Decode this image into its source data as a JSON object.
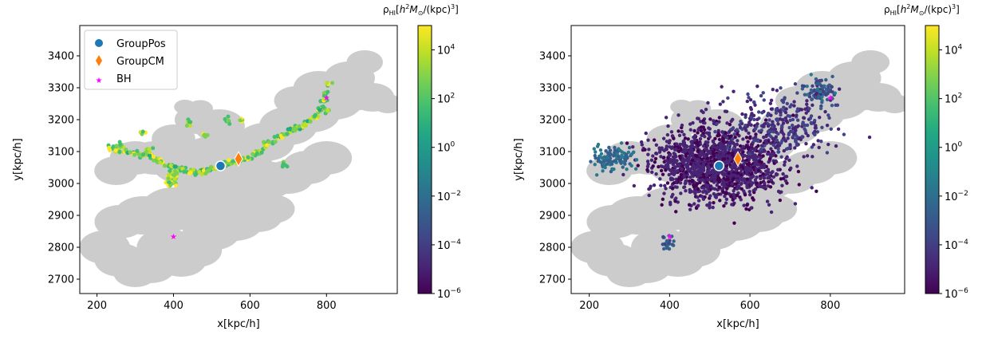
{
  "chart_data": [
    {
      "type": "scatter",
      "xlabel": "x[kpc/h]",
      "ylabel": "y[kpc/h]",
      "xlim": [
        155,
        985
      ],
      "ylim": [
        2655,
        3495
      ],
      "xticks": [
        "200",
        "400",
        "600",
        "800"
      ],
      "yticks": [
        "2700",
        "2800",
        "2900",
        "3000",
        "3100",
        "3200",
        "3300",
        "3400"
      ],
      "colorbar": {
        "label": "ρ_HI[h²M⊙/(kpc)³]",
        "scale": "log",
        "range": [
          1e-06,
          100000.0
        ],
        "ticks": [
          "10^-6",
          "10^-4",
          "10^-2",
          "10^0",
          "10^2",
          "10^4"
        ],
        "colormap": "viridis"
      },
      "legend": {
        "placement": "top-left",
        "entries": [
          "GroupPos",
          "GroupCM",
          "BH"
        ]
      },
      "markers": {
        "GroupPos": {
          "x": 523,
          "y": 3055,
          "color": "#1f77b4"
        },
        "GroupCM": {
          "x": 570,
          "y": 3077,
          "color": "#ff7f0e"
        },
        "BH": {
          "x": [
            400,
            800
          ],
          "y": [
            2835,
            3270
          ],
          "color": "#ff00ff"
        }
      },
      "background_color": "#cccccc",
      "gas_distribution": "filament",
      "grid": false
    },
    {
      "type": "scatter",
      "xlabel": "x[kpc/h]",
      "ylabel": "y[kpc/h]",
      "xlim": [
        155,
        985
      ],
      "ylim": [
        2655,
        3495
      ],
      "xticks": [
        "200",
        "400",
        "600",
        "800"
      ],
      "yticks": [
        "2700",
        "2800",
        "2900",
        "3000",
        "3100",
        "3200",
        "3300",
        "3400"
      ],
      "colorbar": {
        "label": "ρ_HI[h²M⊙/(kpc)³]",
        "scale": "log",
        "range": [
          1e-06,
          100000.0
        ],
        "ticks": [
          "10^-6",
          "10^-4",
          "10^-2",
          "10^0",
          "10^2",
          "10^4"
        ],
        "colormap": "viridis"
      },
      "markers": {
        "GroupPos": {
          "x": 523,
          "y": 3055,
          "color": "#1f77b4"
        },
        "GroupCM": {
          "x": 570,
          "y": 3077,
          "color": "#ff7f0e"
        },
        "BH": {
          "x": [
            400,
            800
          ],
          "y": [
            2835,
            3270
          ],
          "color": "#ff00ff"
        }
      },
      "background_color": "#cccccc",
      "gas_distribution": "diffuse",
      "grid": false
    }
  ]
}
